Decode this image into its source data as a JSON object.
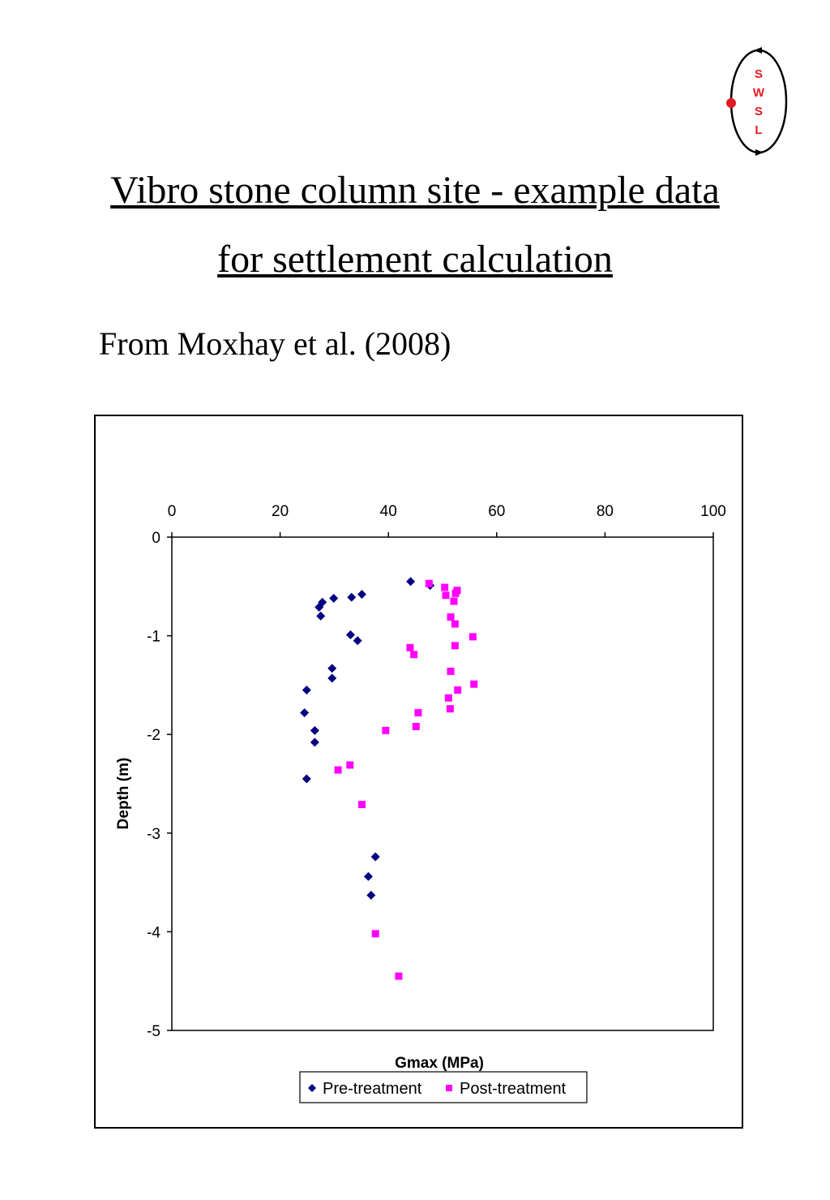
{
  "header": {
    "title_line1": "Vibro stone column site - example data",
    "title_line2": "for settlement calculation",
    "source": "From Moxhay et al. (2008)"
  },
  "logo": {
    "letters": [
      "S",
      "W",
      "S",
      "L"
    ],
    "colors": {
      "letters": "#e31b23",
      "dot": "#e31b23",
      "ring": "#000000"
    }
  },
  "chart_data": {
    "type": "scatter",
    "title": "",
    "xlabel": "Gmax (MPa)",
    "ylabel": "Depth (m)",
    "xlim": [
      0,
      100
    ],
    "ylim": [
      -5,
      0
    ],
    "x_ticks": [
      0,
      20,
      40,
      60,
      80,
      100
    ],
    "y_ticks": [
      0,
      -1,
      -2,
      -3,
      -4,
      -5
    ],
    "x_axis_position": "top",
    "grid": false,
    "legend_position": "bottom",
    "series": [
      {
        "name": "Pre-treatment",
        "marker": "diamond",
        "color": "#000080",
        "points": [
          [
            44.1,
            -0.45
          ],
          [
            47.7,
            -0.49
          ],
          [
            35.1,
            -0.58
          ],
          [
            33.2,
            -0.61
          ],
          [
            29.9,
            -0.62
          ],
          [
            27.8,
            -0.66
          ],
          [
            27.2,
            -0.71
          ],
          [
            27.5,
            -0.8
          ],
          [
            33.0,
            -0.99
          ],
          [
            34.3,
            -1.05
          ],
          [
            29.6,
            -1.33
          ],
          [
            29.6,
            -1.43
          ],
          [
            24.9,
            -1.55
          ],
          [
            24.5,
            -1.78
          ],
          [
            26.4,
            -1.96
          ],
          [
            26.4,
            -2.08
          ],
          [
            24.9,
            -2.45
          ],
          [
            37.6,
            -3.24
          ],
          [
            36.3,
            -3.44
          ],
          [
            36.8,
            -3.63
          ]
        ]
      },
      {
        "name": "Post-treatment",
        "marker": "square",
        "color": "#ff00ff",
        "points": [
          [
            47.5,
            -0.47
          ],
          [
            50.4,
            -0.51
          ],
          [
            52.7,
            -0.54
          ],
          [
            52.4,
            -0.57
          ],
          [
            50.6,
            -0.59
          ],
          [
            52.1,
            -0.65
          ],
          [
            51.5,
            -0.81
          ],
          [
            52.3,
            -0.88
          ],
          [
            55.6,
            -1.01
          ],
          [
            44.0,
            -1.12
          ],
          [
            44.7,
            -1.19
          ],
          [
            52.3,
            -1.1
          ],
          [
            51.5,
            -1.36
          ],
          [
            55.8,
            -1.49
          ],
          [
            52.8,
            -1.55
          ],
          [
            51.1,
            -1.63
          ],
          [
            51.4,
            -1.74
          ],
          [
            45.5,
            -1.78
          ],
          [
            45.1,
            -1.92
          ],
          [
            39.5,
            -1.96
          ],
          [
            32.9,
            -2.31
          ],
          [
            30.7,
            -2.36
          ],
          [
            35.1,
            -2.71
          ],
          [
            37.6,
            -4.02
          ],
          [
            41.9,
            -4.45
          ]
        ]
      }
    ]
  }
}
